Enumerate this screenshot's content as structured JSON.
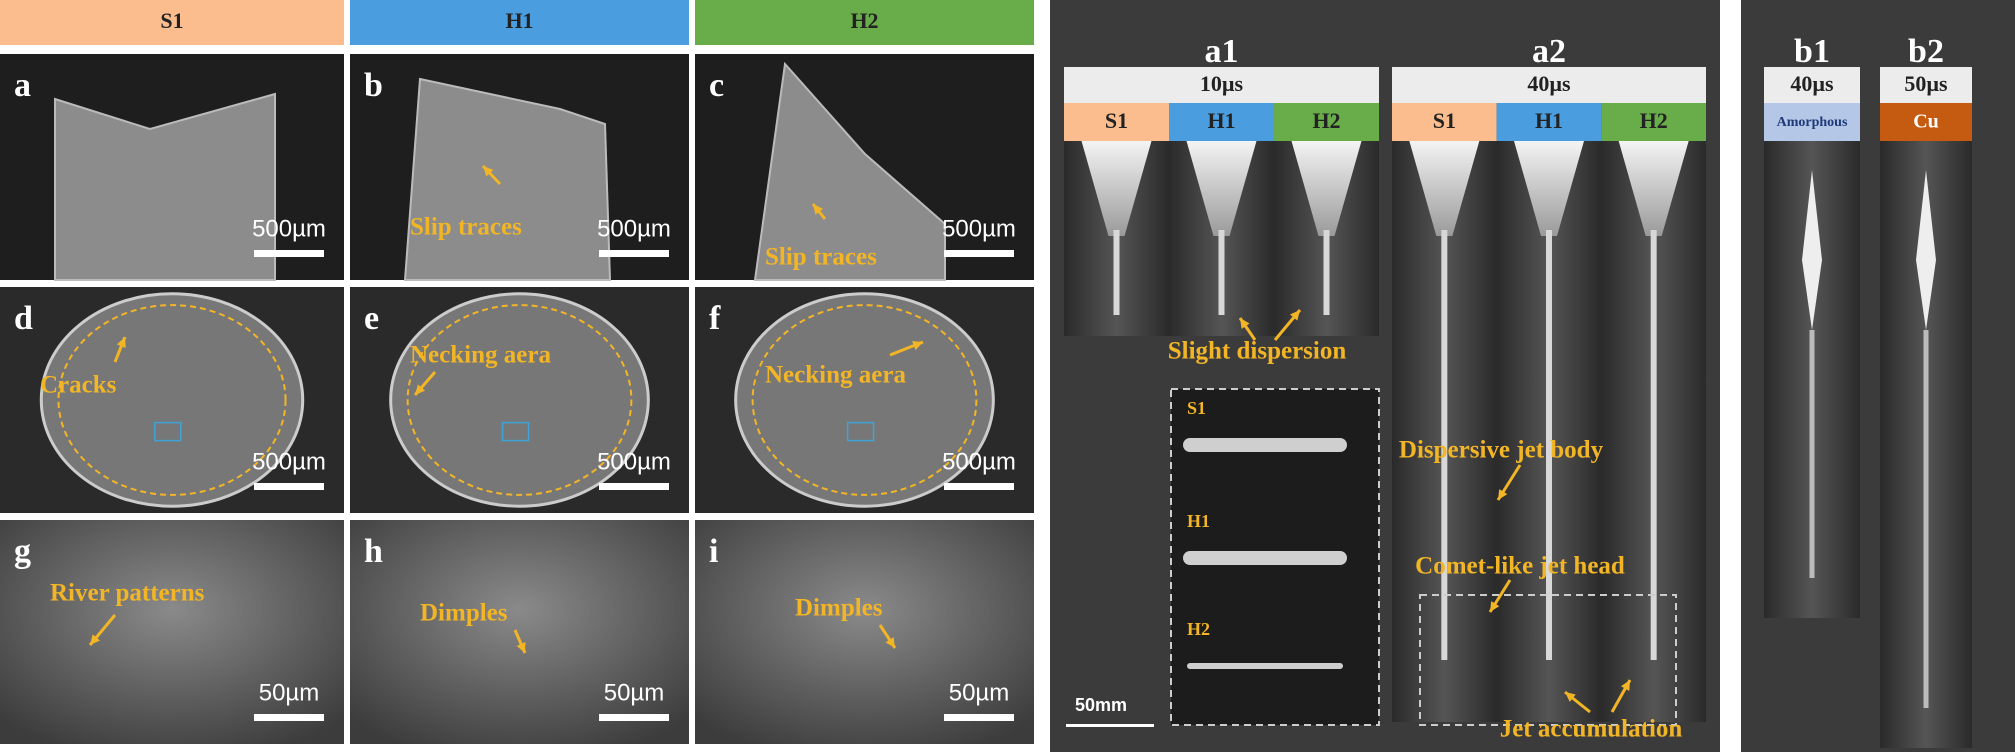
{
  "left_panel": {
    "headers": [
      "S1",
      "H1",
      "H2"
    ],
    "panels": [
      {
        "label": "a",
        "scale_bar": "500µm"
      },
      {
        "label": "b",
        "scale_bar": "500µm",
        "annotation": "Slip traces"
      },
      {
        "label": "c",
        "scale_bar": "500µm",
        "annotation": "Slip traces"
      },
      {
        "label": "d",
        "scale_bar": "500µm",
        "annotation": "Cracks"
      },
      {
        "label": "e",
        "scale_bar": "500µm",
        "annotation": "Necking aera"
      },
      {
        "label": "f",
        "scale_bar": "500µm",
        "annotation": "Necking aera"
      },
      {
        "label": "g",
        "scale_bar": "50µm",
        "annotation": "River patterns"
      },
      {
        "label": "h",
        "scale_bar": "50µm",
        "annotation": "Dimples"
      },
      {
        "label": "i",
        "scale_bar": "50µm",
        "annotation": "Dimples"
      }
    ]
  },
  "middle_panel": {
    "a1": {
      "label": "a1",
      "time": "10µs",
      "samples": [
        "S1",
        "H1",
        "H2"
      ],
      "annotation": "Slight dispersion",
      "inset_labels": [
        "S1",
        "H1",
        "H2"
      ]
    },
    "a2": {
      "label": "a2",
      "time": "40µs",
      "samples": [
        "S1",
        "H1",
        "H2"
      ],
      "annotations": [
        "Dispersive jet body",
        "Comet-like jet head",
        "Jet accumulation"
      ]
    },
    "scale_bar": "50mm"
  },
  "right_panel": {
    "b1": {
      "label": "b1",
      "time": "40µs",
      "material": "Amorphous"
    },
    "b2": {
      "label": "b2",
      "time": "50µs",
      "material": "Cu"
    }
  }
}
